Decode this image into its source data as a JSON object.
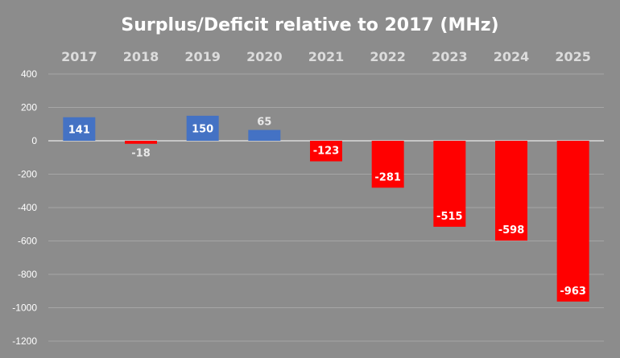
{
  "chart_data": {
    "type": "bar",
    "title": "Surplus/Deficit relative to 2017 (MHz)",
    "categories": [
      "2017",
      "2018",
      "2019",
      "2020",
      "2021",
      "2022",
      "2023",
      "2024",
      "2025"
    ],
    "values": [
      141,
      -18,
      150,
      65,
      -123,
      -281,
      -515,
      -598,
      -963
    ],
    "ylim": [
      -1200,
      400
    ],
    "yticks": [
      400,
      200,
      0,
      -200,
      -400,
      -600,
      -800,
      -1000,
      -1200
    ],
    "xlabel": "",
    "ylabel": "",
    "grid": true,
    "category_axis_position": "top",
    "colors": {
      "background": "#8c8c8c",
      "positive": "#4472c4",
      "negative": "#ff0000",
      "label_on_bar": "#ffffff",
      "label_outside": "#e8e8e8"
    }
  }
}
